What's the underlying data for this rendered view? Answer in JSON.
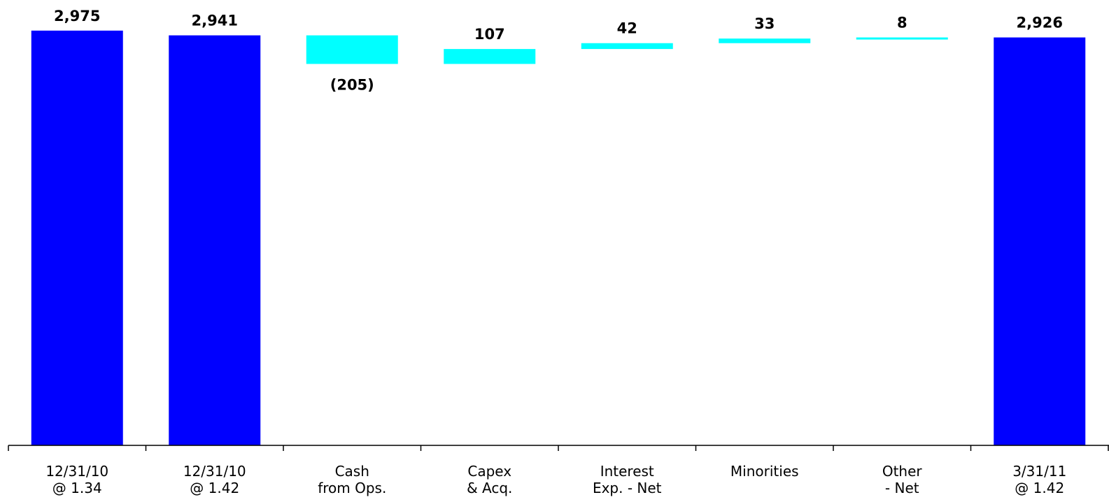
{
  "chart_data": {
    "type": "bar",
    "categories": [
      [
        "12/31/10",
        "@ 1.34"
      ],
      [
        "12/31/10",
        "@ 1.42"
      ],
      [
        "Cash",
        "from Ops."
      ],
      [
        "Capex",
        "& Acq."
      ],
      [
        "Interest",
        "Exp. - Net"
      ],
      [
        "Minorities"
      ],
      [
        "Other",
        "- Net"
      ],
      [
        "3/31/11",
        "@ 1.42"
      ]
    ],
    "bars": [
      {
        "kind": "total",
        "start": 0,
        "end": 2975,
        "label": "2,975"
      },
      {
        "kind": "total",
        "start": 0,
        "end": 2941,
        "label": "2,941"
      },
      {
        "kind": "delta",
        "start": 2941,
        "end": 2736,
        "label": "(205)",
        "label_pos": "below"
      },
      {
        "kind": "delta",
        "start": 2736,
        "end": 2843,
        "label": "107",
        "label_pos": "above"
      },
      {
        "kind": "delta",
        "start": 2843,
        "end": 2885,
        "label": "42",
        "label_pos": "above"
      },
      {
        "kind": "delta",
        "start": 2885,
        "end": 2918,
        "label": "33",
        "label_pos": "above"
      },
      {
        "kind": "delta",
        "start": 2918,
        "end": 2926,
        "label": "8",
        "label_pos": "above"
      },
      {
        "kind": "total",
        "start": 0,
        "end": 2926,
        "label": "2,926"
      }
    ],
    "ylim": [
      0,
      3000
    ],
    "grid": false,
    "colors": {
      "total": "#0000ff",
      "delta": "#00ffff",
      "axis": "#000000"
    }
  }
}
